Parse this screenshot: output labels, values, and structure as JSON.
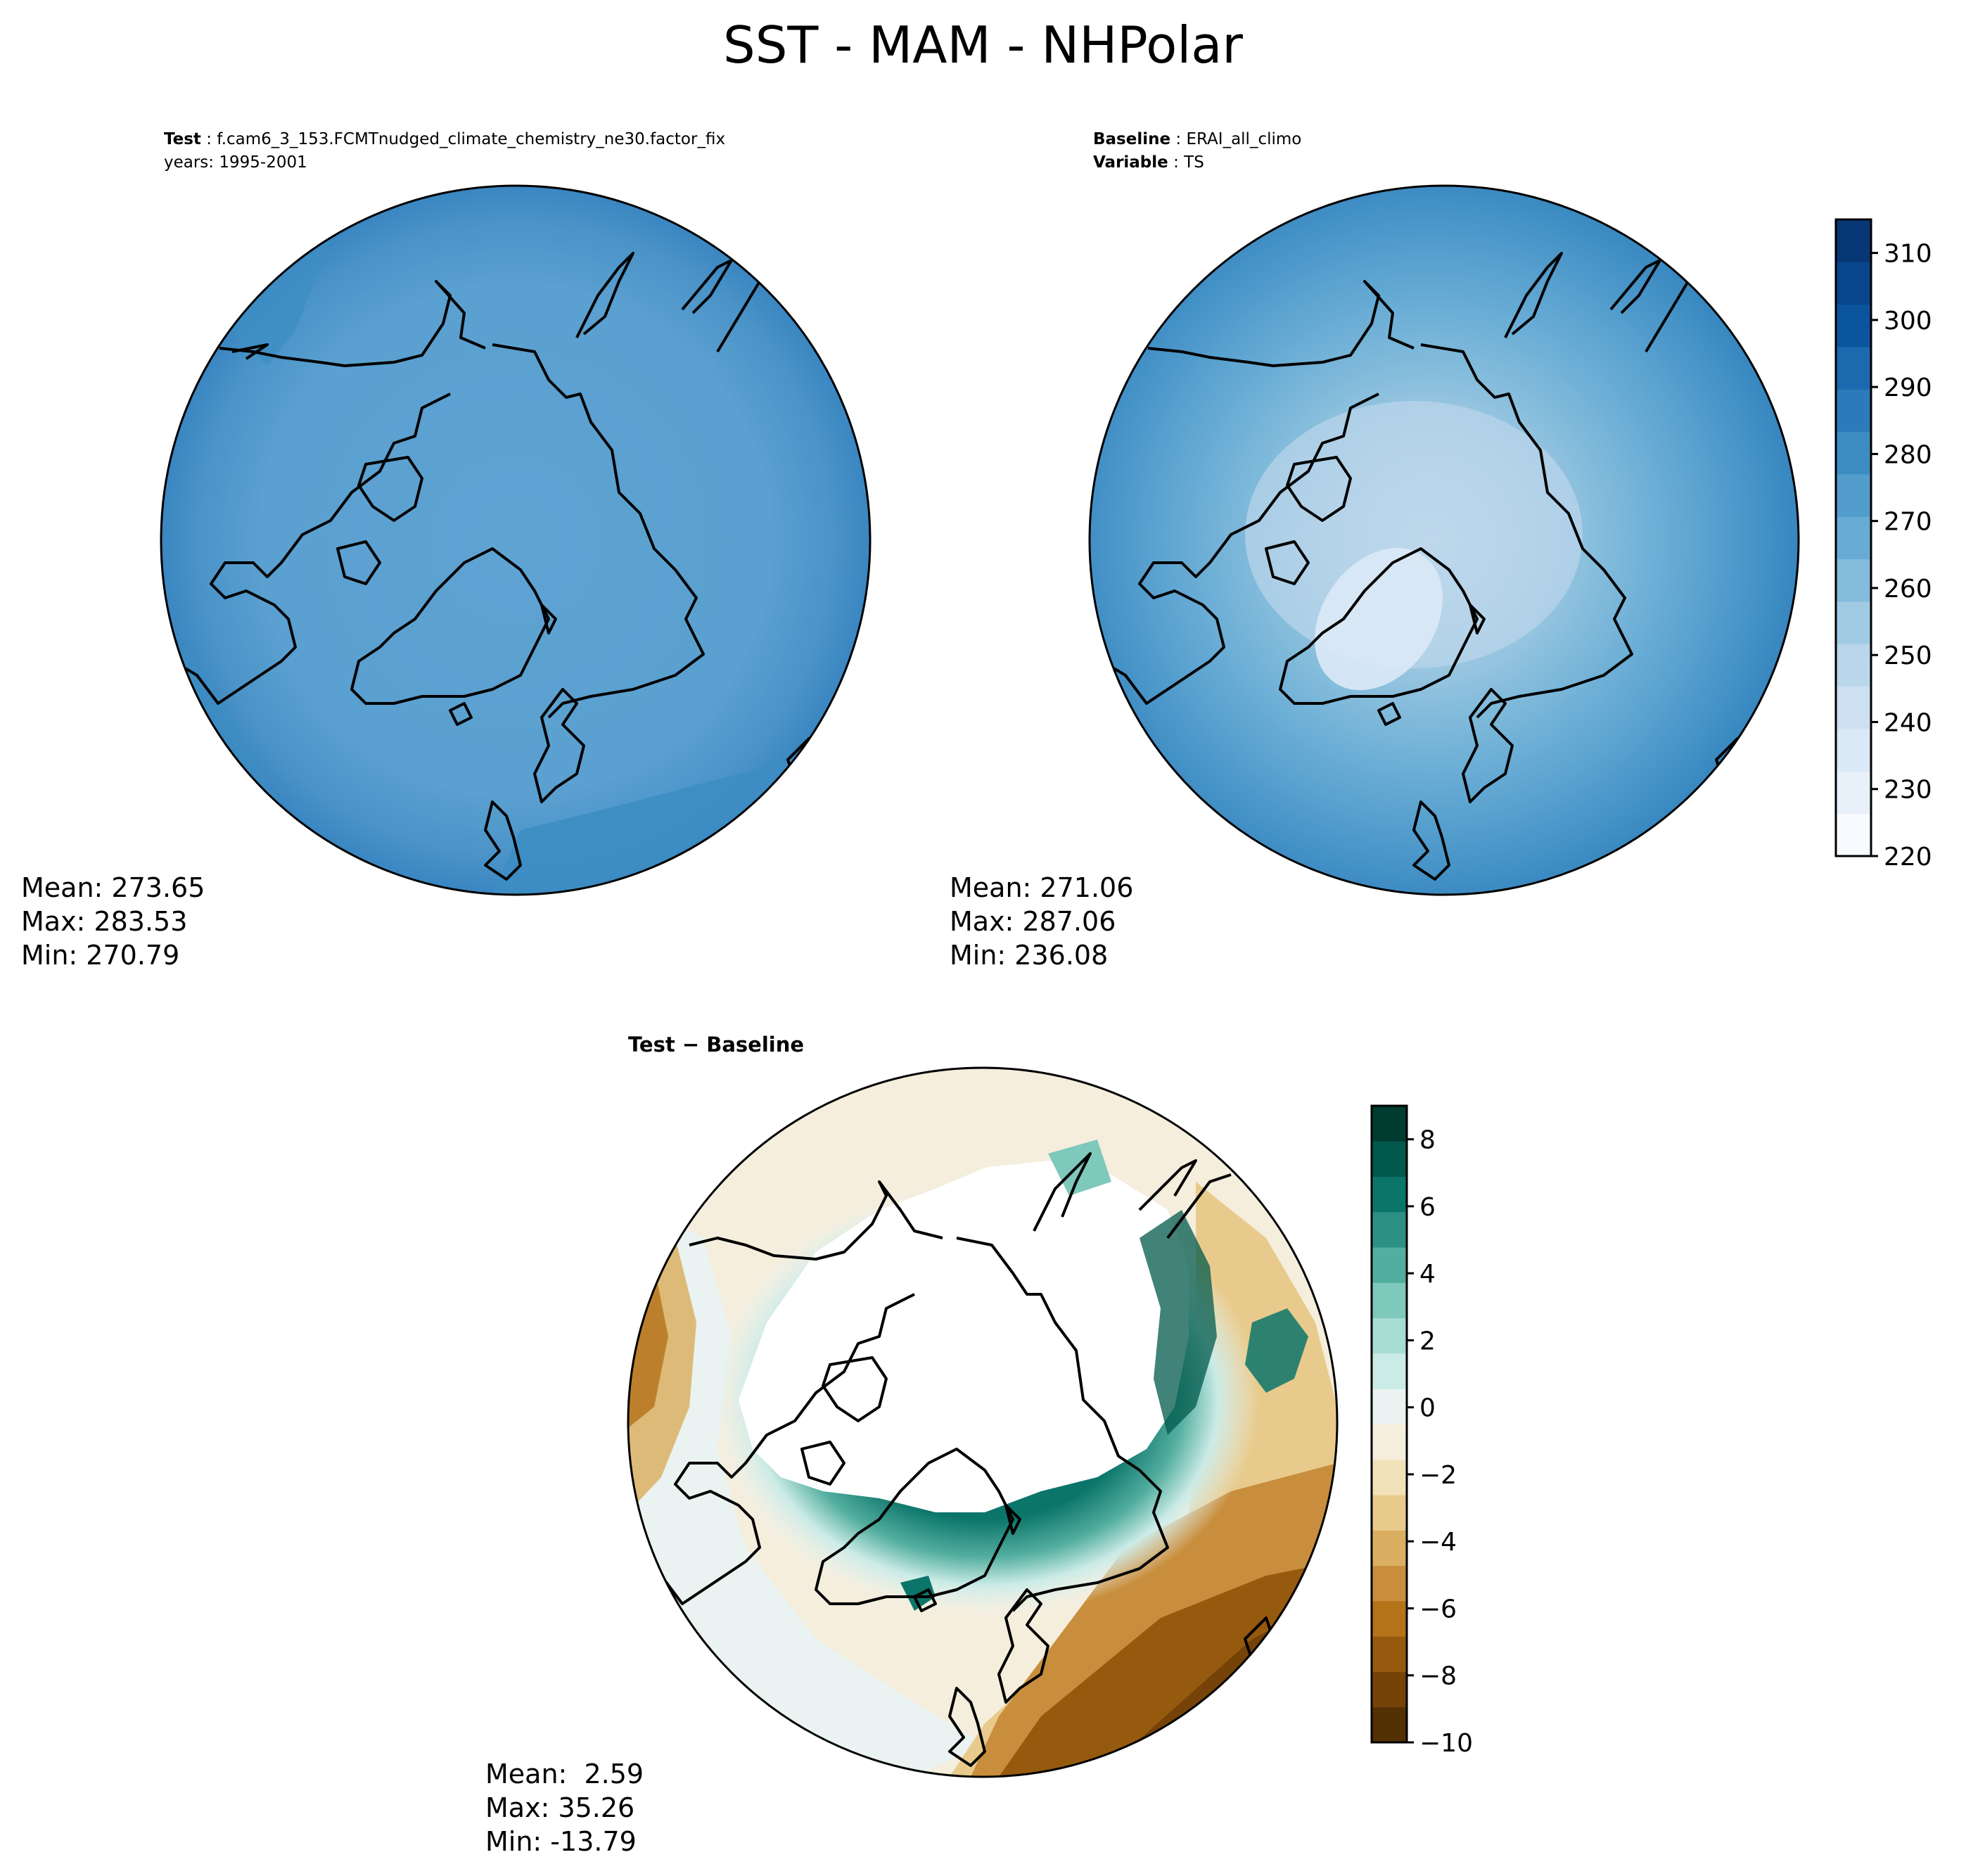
{
  "title": "SST - MAM - NHPolar",
  "test_panel": {
    "label_test": "Test",
    "case_name": "f.cam6_3_153.FCMTnudged_climate_chemistry_ne30.factor_fix",
    "years": "years: 1995-2001",
    "stats": {
      "mean": "Mean: 273.65",
      "max": "Max: 283.53",
      "min": "Min: 270.79"
    }
  },
  "baseline_panel": {
    "label_baseline": "Baseline",
    "baseline_name": "ERAI_all_climo",
    "label_variable": "Variable",
    "variable_name": "TS",
    "stats": {
      "mean": "Mean: 271.06",
      "max": "Max: 287.06",
      "min": "Min: 236.08"
    }
  },
  "diff_panel": {
    "title": "Test − Baseline",
    "stats": {
      "mean": "Mean:  2.59",
      "max": "Max: 35.26",
      "min": "Min: -13.79"
    }
  },
  "colorbar_main": {
    "ticks": [
      "220",
      "230",
      "240",
      "250",
      "260",
      "270",
      "280",
      "290",
      "300",
      "310"
    ],
    "range": [
      220,
      315
    ],
    "colors": [
      "#f7fbff",
      "#e8f1fa",
      "#dbe9f6",
      "#cde0f1",
      "#bad6eb",
      "#a0cbe2",
      "#84bcdb",
      "#68acd5",
      "#529dcc",
      "#3d8dc3",
      "#2b7bba",
      "#1b69af",
      "#0b559f",
      "#08468b",
      "#083776"
    ]
  },
  "colorbar_diff": {
    "ticks": [
      "−10",
      "−8",
      "−6",
      "−4",
      "−2",
      "0",
      "2",
      "4",
      "6",
      "8"
    ],
    "range": [
      -10,
      9
    ],
    "colors": [
      "#543005",
      "#754308",
      "#965a0e",
      "#b47219",
      "#c98e3d",
      "#dbaf62",
      "#e8cb8c",
      "#f2e2ba",
      "#f5eedd",
      "#eaf3f1",
      "#cbebe6",
      "#a8ddd4",
      "#7ec9bc",
      "#52ae9f",
      "#2c9085",
      "#0c756a",
      "#01594c",
      "#003c30"
    ]
  }
}
